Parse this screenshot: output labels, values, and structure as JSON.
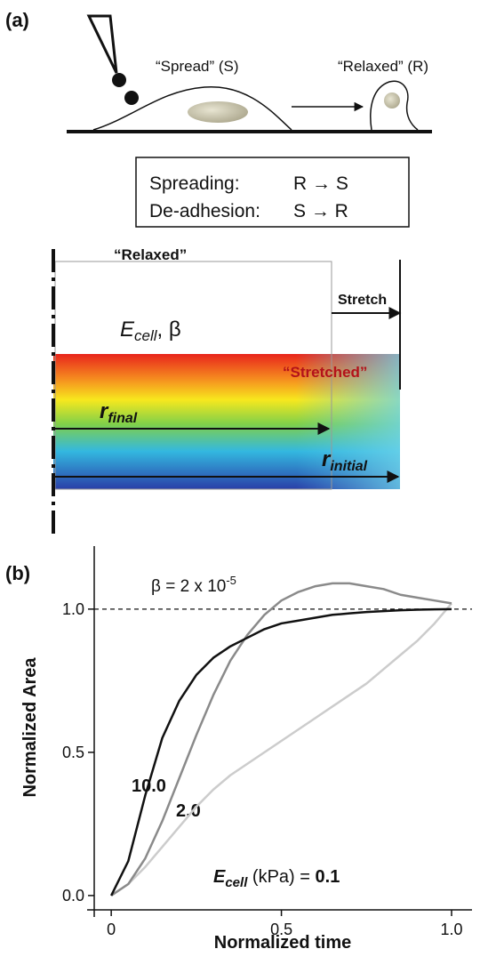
{
  "panel_a": {
    "label": "(a)",
    "spread_label": "“Spread” (S)",
    "relaxed_label": "“Relaxed” (R)",
    "process_box": [
      {
        "name": "Spreading:",
        "transition": "R → S"
      },
      {
        "name": "De-adhesion:",
        "transition": "S → R"
      }
    ],
    "relaxed_state": "“Relaxed”",
    "stretch": "Stretch",
    "stretched_state": "“Stretched”",
    "modulus": {
      "symbol": "E",
      "subscript": "cell",
      "rest": ", β"
    },
    "r_final": {
      "symbol": "r",
      "subscript": "final"
    },
    "r_initial": {
      "symbol": "r",
      "subscript": "initial"
    }
  },
  "chart_data": {
    "type": "line",
    "panel_label": "(b)",
    "x_label": "Normalized time",
    "y_label": "Normalized Area",
    "annotation": {
      "text": "β = 2 x 10",
      "superscript": "-5"
    },
    "reference_line": 1,
    "series_label": {
      "symbol": "E",
      "subscript": "cell",
      "rest": " (kPa) = "
    },
    "x": [
      0,
      0.05,
      0.1,
      0.15,
      0.2,
      0.25,
      0.3,
      0.35,
      0.4,
      0.45,
      0.5,
      0.55,
      0.6,
      0.65,
      0.7,
      0.75,
      0.8,
      0.85,
      0.9,
      0.95,
      1.0
    ],
    "series": [
      {
        "name": "10.0",
        "color": "#111111",
        "values": [
          0,
          0.12,
          0.35,
          0.55,
          0.68,
          0.77,
          0.83,
          0.87,
          0.9,
          0.93,
          0.95,
          0.96,
          0.97,
          0.98,
          0.985,
          0.99,
          0.993,
          0.996,
          0.998,
          0.999,
          1.0
        ]
      },
      {
        "name": "2.0",
        "color": "#8a8a8a",
        "values": [
          0,
          0.04,
          0.13,
          0.26,
          0.41,
          0.56,
          0.7,
          0.82,
          0.91,
          0.98,
          1.03,
          1.06,
          1.08,
          1.09,
          1.09,
          1.08,
          1.07,
          1.05,
          1.04,
          1.03,
          1.02
        ]
      },
      {
        "name": "0.1",
        "color": "#cccccc",
        "values": [
          0,
          0.04,
          0.1,
          0.17,
          0.24,
          0.31,
          0.37,
          0.42,
          0.46,
          0.5,
          0.54,
          0.58,
          0.62,
          0.66,
          0.7,
          0.74,
          0.79,
          0.84,
          0.89,
          0.95,
          1.02
        ]
      }
    ],
    "xlim": [
      -0.05,
      1.06
    ],
    "ylim": [
      -0.05,
      1.22
    ],
    "xticks": [
      0,
      0.5,
      {
        "value": 1,
        "label": "1.0"
      }
    ],
    "yticks": [
      {
        "value": 0,
        "label": "0.0"
      },
      0.5,
      {
        "value": 1,
        "label": "1.0"
      }
    ]
  }
}
